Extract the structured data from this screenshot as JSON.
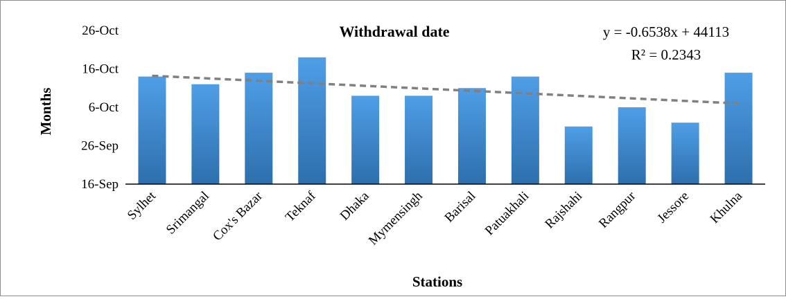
{
  "chart_data": {
    "type": "bar",
    "title": "Withdrawal date",
    "xlabel": "Stations",
    "ylabel": "Months",
    "categories": [
      "Sylhet",
      "Srimangal",
      "Cox's Bazar",
      "Teknaf",
      "Dhaka",
      "Mymensingh",
      "Barisal",
      "Patuakhali",
      "Rajshahi",
      "Rangpur",
      "Jessore",
      "Khulna"
    ],
    "values": [
      8,
      6,
      9,
      13,
      3,
      3,
      5,
      8,
      -5,
      0,
      -4,
      9
    ],
    "value_unit": "days relative to 6-Oct",
    "yticks": [
      {
        "value": -20,
        "label": "16-Sep"
      },
      {
        "value": -10,
        "label": "26-Sep"
      },
      {
        "value": 0,
        "label": "6-Oct"
      },
      {
        "value": 10,
        "label": "16-Oct"
      },
      {
        "value": 20,
        "label": "26-Oct"
      }
    ],
    "ylim": [
      -20,
      20
    ],
    "trendline": {
      "type": "linear",
      "style": "dashed",
      "color": "#808080",
      "equation": "y = -0.6538x + 44113",
      "r_squared": "R² = 0.2343",
      "start_value": 8.2,
      "end_value": 1.0
    },
    "bar_color_top": "#4f9ee6",
    "bar_color_bottom": "#2e6fad",
    "grid": false,
    "legend": "none"
  }
}
